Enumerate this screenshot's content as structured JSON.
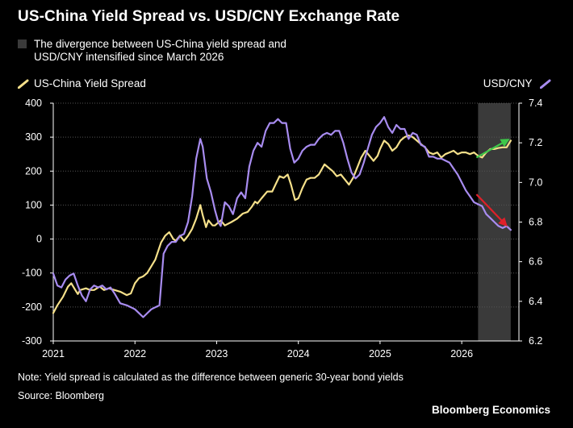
{
  "title": "US-China Yield Spread vs. USD/CNY Exchange Rate",
  "legend": {
    "shade_label": "The divergence between US-China yield spread and USD/CNY intensified since March 2026",
    "left_series_label": "US-China Yield Spread",
    "right_series_label": "USD/CNY"
  },
  "note": "Note: Yield spread is calculated as the difference between generic 30-year bond yields",
  "source": "Source: Bloomberg",
  "brand": "Bloomberg Economics",
  "colors": {
    "spread": "#f5e08a",
    "usdcny": "#a88cf0",
    "shade": "#3a3a3a",
    "green_arrow": "#3ec84a",
    "red_arrow": "#e0202a"
  },
  "chart_data": {
    "type": "line",
    "x_axis": {
      "type": "time",
      "range": [
        2021.0,
        2026.7
      ],
      "tick_labels": [
        "2021",
        "2022",
        "2023",
        "2024",
        "2025",
        "2026"
      ]
    },
    "y_left": {
      "label": "",
      "range": [
        -300,
        400
      ],
      "ticks": [
        -300,
        -200,
        -100,
        0,
        100,
        200,
        300,
        400
      ]
    },
    "y_right": {
      "label": "USD/CNY",
      "range": [
        6.2,
        7.4
      ],
      "ticks": [
        6.2,
        6.4,
        6.6,
        6.8,
        7.0,
        7.2,
        7.4
      ]
    },
    "shaded_region": {
      "x": [
        2026.2,
        2026.6
      ]
    },
    "annotations": [
      {
        "series": "US-China Yield Spread",
        "direction": "up",
        "from": [
          2026.18,
          240
        ],
        "to": [
          2026.55,
          290
        ]
      },
      {
        "series": "USD/CNY",
        "direction": "down",
        "from": [
          2026.18,
          6.94
        ],
        "to": [
          2026.53,
          6.79
        ]
      }
    ],
    "series": [
      {
        "name": "US-China Yield Spread",
        "axis": "left",
        "points": [
          [
            2021.0,
            -218
          ],
          [
            2021.05,
            -195
          ],
          [
            2021.12,
            -170
          ],
          [
            2021.18,
            -140
          ],
          [
            2021.22,
            -130
          ],
          [
            2021.27,
            -150
          ],
          [
            2021.3,
            -162
          ],
          [
            2021.33,
            -150
          ],
          [
            2021.4,
            -145
          ],
          [
            2021.45,
            -150
          ],
          [
            2021.5,
            -150
          ],
          [
            2021.57,
            -140
          ],
          [
            2021.62,
            -150
          ],
          [
            2021.68,
            -145
          ],
          [
            2021.75,
            -150
          ],
          [
            2021.82,
            -155
          ],
          [
            2021.9,
            -165
          ],
          [
            2021.95,
            -160
          ],
          [
            2022.0,
            -130
          ],
          [
            2022.05,
            -115
          ],
          [
            2022.1,
            -110
          ],
          [
            2022.15,
            -100
          ],
          [
            2022.2,
            -80
          ],
          [
            2022.25,
            -60
          ],
          [
            2022.32,
            -10
          ],
          [
            2022.37,
            10
          ],
          [
            2022.42,
            20
          ],
          [
            2022.47,
            0
          ],
          [
            2022.5,
            -5
          ],
          [
            2022.55,
            10
          ],
          [
            2022.6,
            -5
          ],
          [
            2022.65,
            10
          ],
          [
            2022.7,
            30
          ],
          [
            2022.75,
            60
          ],
          [
            2022.8,
            100
          ],
          [
            2022.83,
            70
          ],
          [
            2022.87,
            35
          ],
          [
            2022.9,
            55
          ],
          [
            2022.95,
            40
          ],
          [
            2022.98,
            40
          ],
          [
            2023.05,
            55
          ],
          [
            2023.1,
            40
          ],
          [
            2023.18,
            50
          ],
          [
            2023.25,
            60
          ],
          [
            2023.32,
            75
          ],
          [
            2023.38,
            80
          ],
          [
            2023.43,
            95
          ],
          [
            2023.47,
            110
          ],
          [
            2023.5,
            105
          ],
          [
            2023.55,
            120
          ],
          [
            2023.62,
            140
          ],
          [
            2023.68,
            140
          ],
          [
            2023.72,
            160
          ],
          [
            2023.77,
            185
          ],
          [
            2023.82,
            180
          ],
          [
            2023.87,
            190
          ],
          [
            2023.91,
            160
          ],
          [
            2023.96,
            115
          ],
          [
            2024.0,
            120
          ],
          [
            2024.05,
            150
          ],
          [
            2024.1,
            175
          ],
          [
            2024.15,
            180
          ],
          [
            2024.2,
            180
          ],
          [
            2024.25,
            190
          ],
          [
            2024.32,
            220
          ],
          [
            2024.37,
            210
          ],
          [
            2024.42,
            200
          ],
          [
            2024.47,
            185
          ],
          [
            2024.52,
            190
          ],
          [
            2024.57,
            175
          ],
          [
            2024.62,
            160
          ],
          [
            2024.67,
            180
          ],
          [
            2024.72,
            210
          ],
          [
            2024.77,
            240
          ],
          [
            2024.82,
            260
          ],
          [
            2024.87,
            245
          ],
          [
            2024.92,
            230
          ],
          [
            2024.97,
            245
          ],
          [
            2025.0,
            265
          ],
          [
            2025.05,
            290
          ],
          [
            2025.1,
            280
          ],
          [
            2025.15,
            260
          ],
          [
            2025.2,
            270
          ],
          [
            2025.25,
            290
          ],
          [
            2025.3,
            300
          ],
          [
            2025.35,
            305
          ],
          [
            2025.4,
            300
          ],
          [
            2025.45,
            290
          ],
          [
            2025.5,
            280
          ],
          [
            2025.55,
            270
          ],
          [
            2025.6,
            255
          ],
          [
            2025.65,
            250
          ],
          [
            2025.7,
            255
          ],
          [
            2025.75,
            240
          ],
          [
            2025.8,
            250
          ],
          [
            2025.85,
            255
          ],
          [
            2025.9,
            260
          ],
          [
            2025.95,
            250
          ],
          [
            2026.0,
            255
          ],
          [
            2026.05,
            255
          ],
          [
            2026.1,
            250
          ],
          [
            2026.15,
            255
          ],
          [
            2026.2,
            245
          ],
          [
            2026.25,
            240
          ],
          [
            2026.3,
            255
          ],
          [
            2026.35,
            265
          ],
          [
            2026.4,
            265
          ],
          [
            2026.45,
            268
          ],
          [
            2026.5,
            270
          ],
          [
            2026.55,
            270
          ],
          [
            2026.6,
            290
          ]
        ]
      },
      {
        "name": "USD/CNY",
        "axis": "right",
        "points": [
          [
            2021.0,
            6.54
          ],
          [
            2021.05,
            6.48
          ],
          [
            2021.1,
            6.47
          ],
          [
            2021.15,
            6.51
          ],
          [
            2021.2,
            6.53
          ],
          [
            2021.25,
            6.54
          ],
          [
            2021.3,
            6.48
          ],
          [
            2021.35,
            6.43
          ],
          [
            2021.4,
            6.4
          ],
          [
            2021.45,
            6.46
          ],
          [
            2021.5,
            6.48
          ],
          [
            2021.55,
            6.47
          ],
          [
            2021.6,
            6.48
          ],
          [
            2021.65,
            6.46
          ],
          [
            2021.7,
            6.47
          ],
          [
            2021.75,
            6.44
          ],
          [
            2021.82,
            6.39
          ],
          [
            2021.9,
            6.38
          ],
          [
            2021.95,
            6.37
          ],
          [
            2022.0,
            6.36
          ],
          [
            2022.05,
            6.34
          ],
          [
            2022.1,
            6.32
          ],
          [
            2022.15,
            6.34
          ],
          [
            2022.2,
            6.36
          ],
          [
            2022.25,
            6.37
          ],
          [
            2022.3,
            6.38
          ],
          [
            2022.35,
            6.64
          ],
          [
            2022.4,
            6.68
          ],
          [
            2022.45,
            6.7
          ],
          [
            2022.5,
            6.7
          ],
          [
            2022.55,
            6.73
          ],
          [
            2022.6,
            6.74
          ],
          [
            2022.65,
            6.8
          ],
          [
            2022.7,
            6.93
          ],
          [
            2022.75,
            7.12
          ],
          [
            2022.8,
            7.22
          ],
          [
            2022.83,
            7.18
          ],
          [
            2022.88,
            7.02
          ],
          [
            2022.93,
            6.95
          ],
          [
            2022.98,
            6.86
          ],
          [
            2023.02,
            6.8
          ],
          [
            2023.05,
            6.78
          ],
          [
            2023.1,
            6.9
          ],
          [
            2023.15,
            6.88
          ],
          [
            2023.2,
            6.84
          ],
          [
            2023.25,
            6.92
          ],
          [
            2023.3,
            6.95
          ],
          [
            2023.35,
            6.92
          ],
          [
            2023.4,
            7.08
          ],
          [
            2023.45,
            7.16
          ],
          [
            2023.5,
            7.2
          ],
          [
            2023.55,
            7.18
          ],
          [
            2023.6,
            7.26
          ],
          [
            2023.65,
            7.3
          ],
          [
            2023.7,
            7.3
          ],
          [
            2023.75,
            7.32
          ],
          [
            2023.8,
            7.3
          ],
          [
            2023.85,
            7.3
          ],
          [
            2023.9,
            7.17
          ],
          [
            2023.95,
            7.1
          ],
          [
            2024.0,
            7.12
          ],
          [
            2024.05,
            7.16
          ],
          [
            2024.1,
            7.18
          ],
          [
            2024.15,
            7.19
          ],
          [
            2024.2,
            7.19
          ],
          [
            2024.25,
            7.22
          ],
          [
            2024.3,
            7.24
          ],
          [
            2024.35,
            7.25
          ],
          [
            2024.4,
            7.24
          ],
          [
            2024.45,
            7.26
          ],
          [
            2024.5,
            7.26
          ],
          [
            2024.55,
            7.2
          ],
          [
            2024.6,
            7.12
          ],
          [
            2024.65,
            7.05
          ],
          [
            2024.7,
            7.02
          ],
          [
            2024.75,
            7.04
          ],
          [
            2024.8,
            7.1
          ],
          [
            2024.85,
            7.17
          ],
          [
            2024.9,
            7.24
          ],
          [
            2024.95,
            7.28
          ],
          [
            2025.0,
            7.3
          ],
          [
            2025.05,
            7.33
          ],
          [
            2025.1,
            7.28
          ],
          [
            2025.15,
            7.25
          ],
          [
            2025.2,
            7.29
          ],
          [
            2025.25,
            7.27
          ],
          [
            2025.3,
            7.27
          ],
          [
            2025.35,
            7.22
          ],
          [
            2025.4,
            7.25
          ],
          [
            2025.45,
            7.24
          ],
          [
            2025.5,
            7.19
          ],
          [
            2025.55,
            7.18
          ],
          [
            2025.6,
            7.13
          ],
          [
            2025.65,
            7.13
          ],
          [
            2025.7,
            7.12
          ],
          [
            2025.75,
            7.12
          ],
          [
            2025.8,
            7.11
          ],
          [
            2025.85,
            7.1
          ],
          [
            2025.9,
            7.07
          ],
          [
            2025.95,
            7.04
          ],
          [
            2026.0,
            7.0
          ],
          [
            2026.05,
            6.96
          ],
          [
            2026.1,
            6.93
          ],
          [
            2026.15,
            6.9
          ],
          [
            2026.2,
            6.89
          ],
          [
            2026.25,
            6.88
          ],
          [
            2026.3,
            6.84
          ],
          [
            2026.35,
            6.82
          ],
          [
            2026.4,
            6.8
          ],
          [
            2026.45,
            6.78
          ],
          [
            2026.5,
            6.77
          ],
          [
            2026.55,
            6.78
          ],
          [
            2026.6,
            6.76
          ]
        ]
      }
    ]
  }
}
